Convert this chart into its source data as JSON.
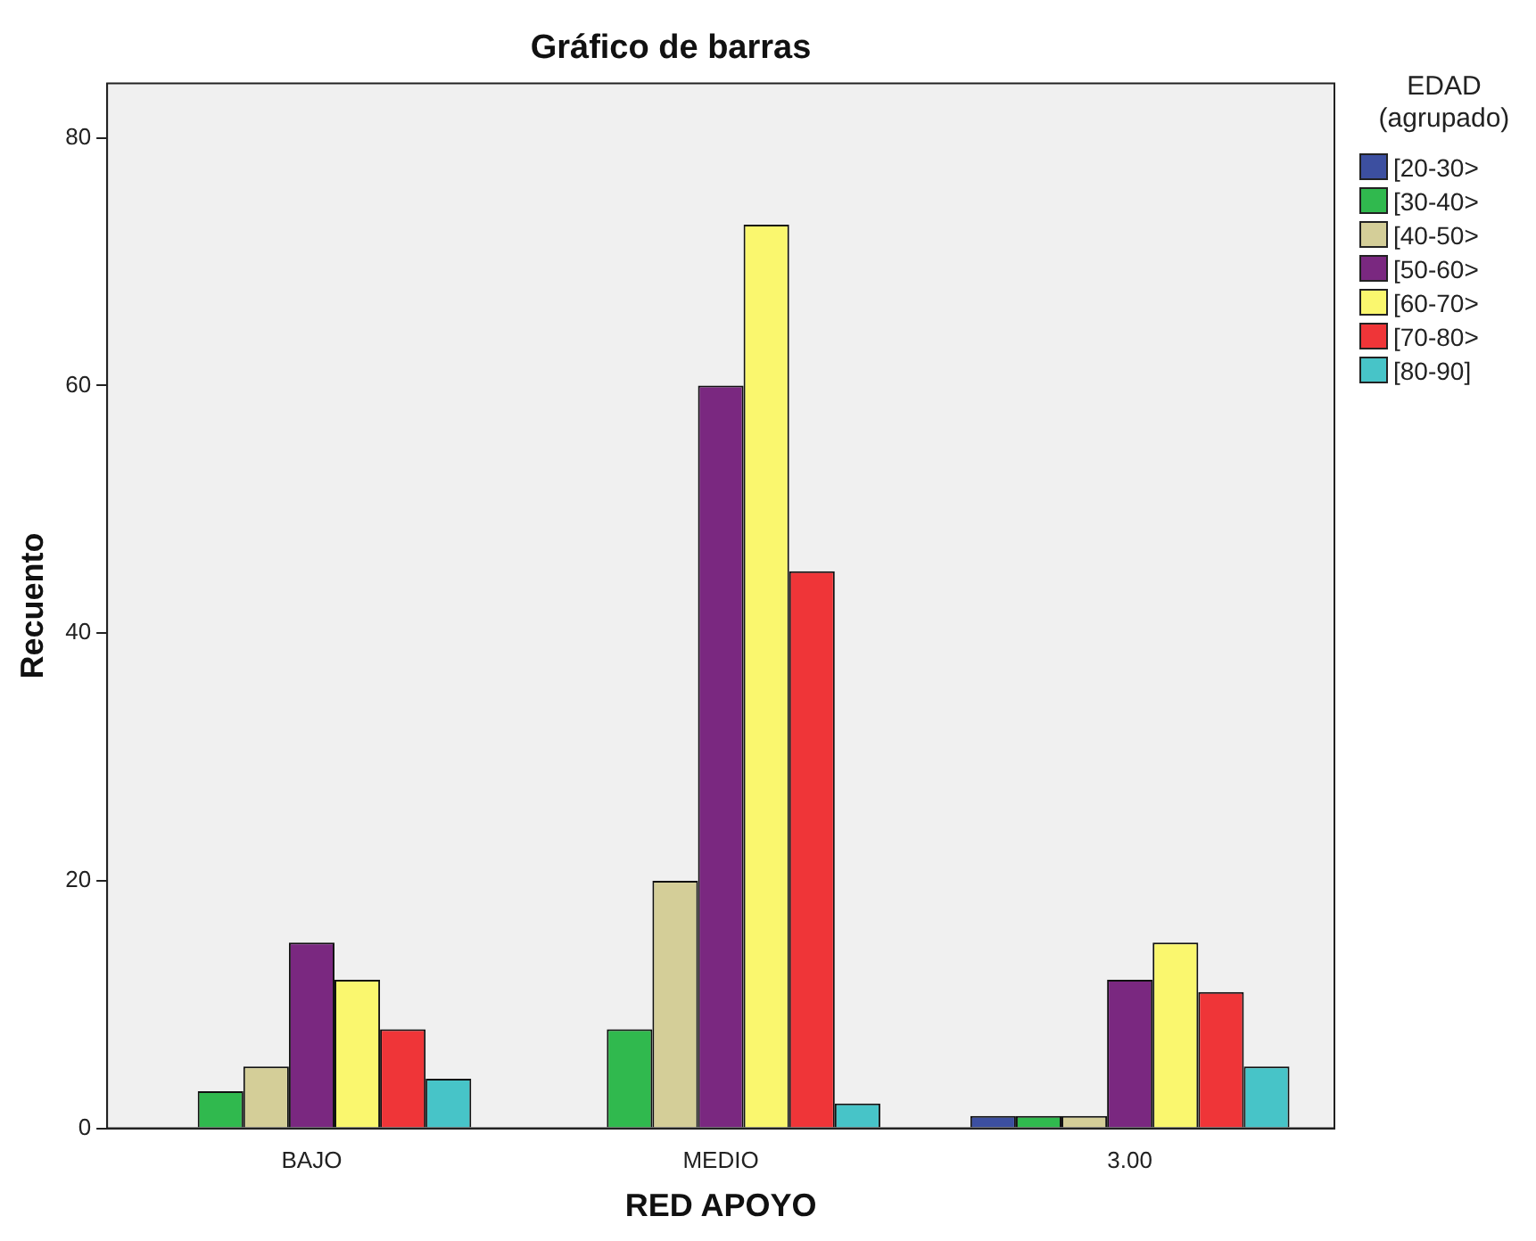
{
  "chart_data": {
    "type": "bar",
    "title": "Gráfico de barras",
    "xlabel": "RED APOYO",
    "ylabel": "Recuento",
    "legend_title": "EDAD (agrupado)",
    "legend": "right",
    "categories": [
      "BAJO",
      "MEDIO",
      "3.00"
    ],
    "series": [
      {
        "name": "[20-30>",
        "color": "#3c4fa0",
        "values": [
          null,
          null,
          1
        ]
      },
      {
        "name": "[30-40>",
        "color": "#30b94e",
        "values": [
          3,
          8,
          1
        ]
      },
      {
        "name": "[40-50>",
        "color": "#d4ce98",
        "values": [
          5,
          20,
          1
        ]
      },
      {
        "name": "[50-60>",
        "color": "#7a2880",
        "values": [
          15,
          60,
          12
        ]
      },
      {
        "name": "[60-70>",
        "color": "#faf76e",
        "values": [
          12,
          73,
          15
        ]
      },
      {
        "name": "[70-80>",
        "color": "#ef3538",
        "values": [
          8,
          45,
          11
        ]
      },
      {
        "name": "[80-90]",
        "color": "#47c4c8",
        "values": [
          4,
          2,
          5
        ]
      }
    ],
    "ylim": [
      0,
      84.4
    ],
    "yticks": [
      0,
      20,
      40,
      60,
      80
    ],
    "grid": false
  }
}
